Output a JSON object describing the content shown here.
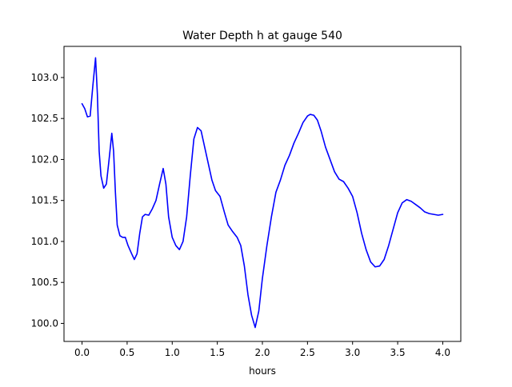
{
  "chart_data": {
    "type": "line",
    "title": "Water Depth h at gauge 540",
    "xlabel": "hours",
    "ylabel": "",
    "xlim": [
      -0.2,
      4.2
    ],
    "ylim": [
      99.78,
      103.38
    ],
    "xticks": [
      0.0,
      0.5,
      1.0,
      1.5,
      2.0,
      2.5,
      3.0,
      3.5,
      4.0
    ],
    "xtick_labels": [
      "0.0",
      "0.5",
      "1.0",
      "1.5",
      "2.0",
      "2.5",
      "3.0",
      "3.5",
      "4.0"
    ],
    "yticks": [
      100.0,
      100.5,
      101.0,
      101.5,
      102.0,
      102.5,
      103.0
    ],
    "ytick_labels": [
      "100.0",
      "100.5",
      "101.0",
      "101.5",
      "102.0",
      "102.5",
      "103.0"
    ],
    "grid": false,
    "series": [
      {
        "color": "#0000ff",
        "x": [
          0.0,
          0.03,
          0.06,
          0.09,
          0.12,
          0.15,
          0.17,
          0.19,
          0.21,
          0.24,
          0.27,
          0.3,
          0.33,
          0.35,
          0.37,
          0.39,
          0.42,
          0.45,
          0.48,
          0.51,
          0.55,
          0.58,
          0.61,
          0.64,
          0.67,
          0.7,
          0.74,
          0.78,
          0.82,
          0.86,
          0.9,
          0.93,
          0.96,
          1.0,
          1.04,
          1.08,
          1.12,
          1.16,
          1.2,
          1.24,
          1.28,
          1.32,
          1.36,
          1.4,
          1.44,
          1.48,
          1.53,
          1.58,
          1.62,
          1.67,
          1.72,
          1.76,
          1.8,
          1.84,
          1.88,
          1.92,
          1.96,
          2.0,
          2.05,
          2.1,
          2.15,
          2.2,
          2.25,
          2.3,
          2.35,
          2.4,
          2.45,
          2.5,
          2.53,
          2.57,
          2.61,
          2.65,
          2.7,
          2.75,
          2.8,
          2.85,
          2.9,
          2.95,
          3.0,
          3.05,
          3.1,
          3.15,
          3.2,
          3.25,
          3.3,
          3.35,
          3.4,
          3.45,
          3.5,
          3.55,
          3.6,
          3.65,
          3.7,
          3.75,
          3.8,
          3.85,
          3.9,
          3.95,
          4.0
        ],
        "y": [
          102.68,
          102.62,
          102.52,
          102.53,
          102.9,
          103.24,
          102.8,
          102.1,
          101.8,
          101.65,
          101.7,
          102.0,
          102.32,
          102.1,
          101.6,
          101.2,
          101.07,
          101.05,
          101.05,
          100.95,
          100.85,
          100.78,
          100.85,
          101.1,
          101.3,
          101.33,
          101.32,
          101.4,
          101.5,
          101.7,
          101.89,
          101.7,
          101.3,
          101.05,
          100.95,
          100.9,
          101.0,
          101.3,
          101.8,
          102.25,
          102.39,
          102.35,
          102.15,
          101.95,
          101.75,
          101.62,
          101.55,
          101.35,
          101.2,
          101.12,
          101.05,
          100.95,
          100.7,
          100.35,
          100.1,
          99.95,
          100.15,
          100.55,
          100.95,
          101.3,
          101.6,
          101.75,
          101.93,
          102.05,
          102.2,
          102.32,
          102.45,
          102.53,
          102.55,
          102.54,
          102.48,
          102.35,
          102.15,
          102.0,
          101.85,
          101.76,
          101.73,
          101.65,
          101.55,
          101.35,
          101.1,
          100.9,
          100.75,
          100.69,
          100.7,
          100.78,
          100.95,
          101.15,
          101.35,
          101.47,
          101.51,
          101.49,
          101.45,
          101.41,
          101.36,
          101.34,
          101.33,
          101.32,
          101.33
        ]
      }
    ]
  }
}
